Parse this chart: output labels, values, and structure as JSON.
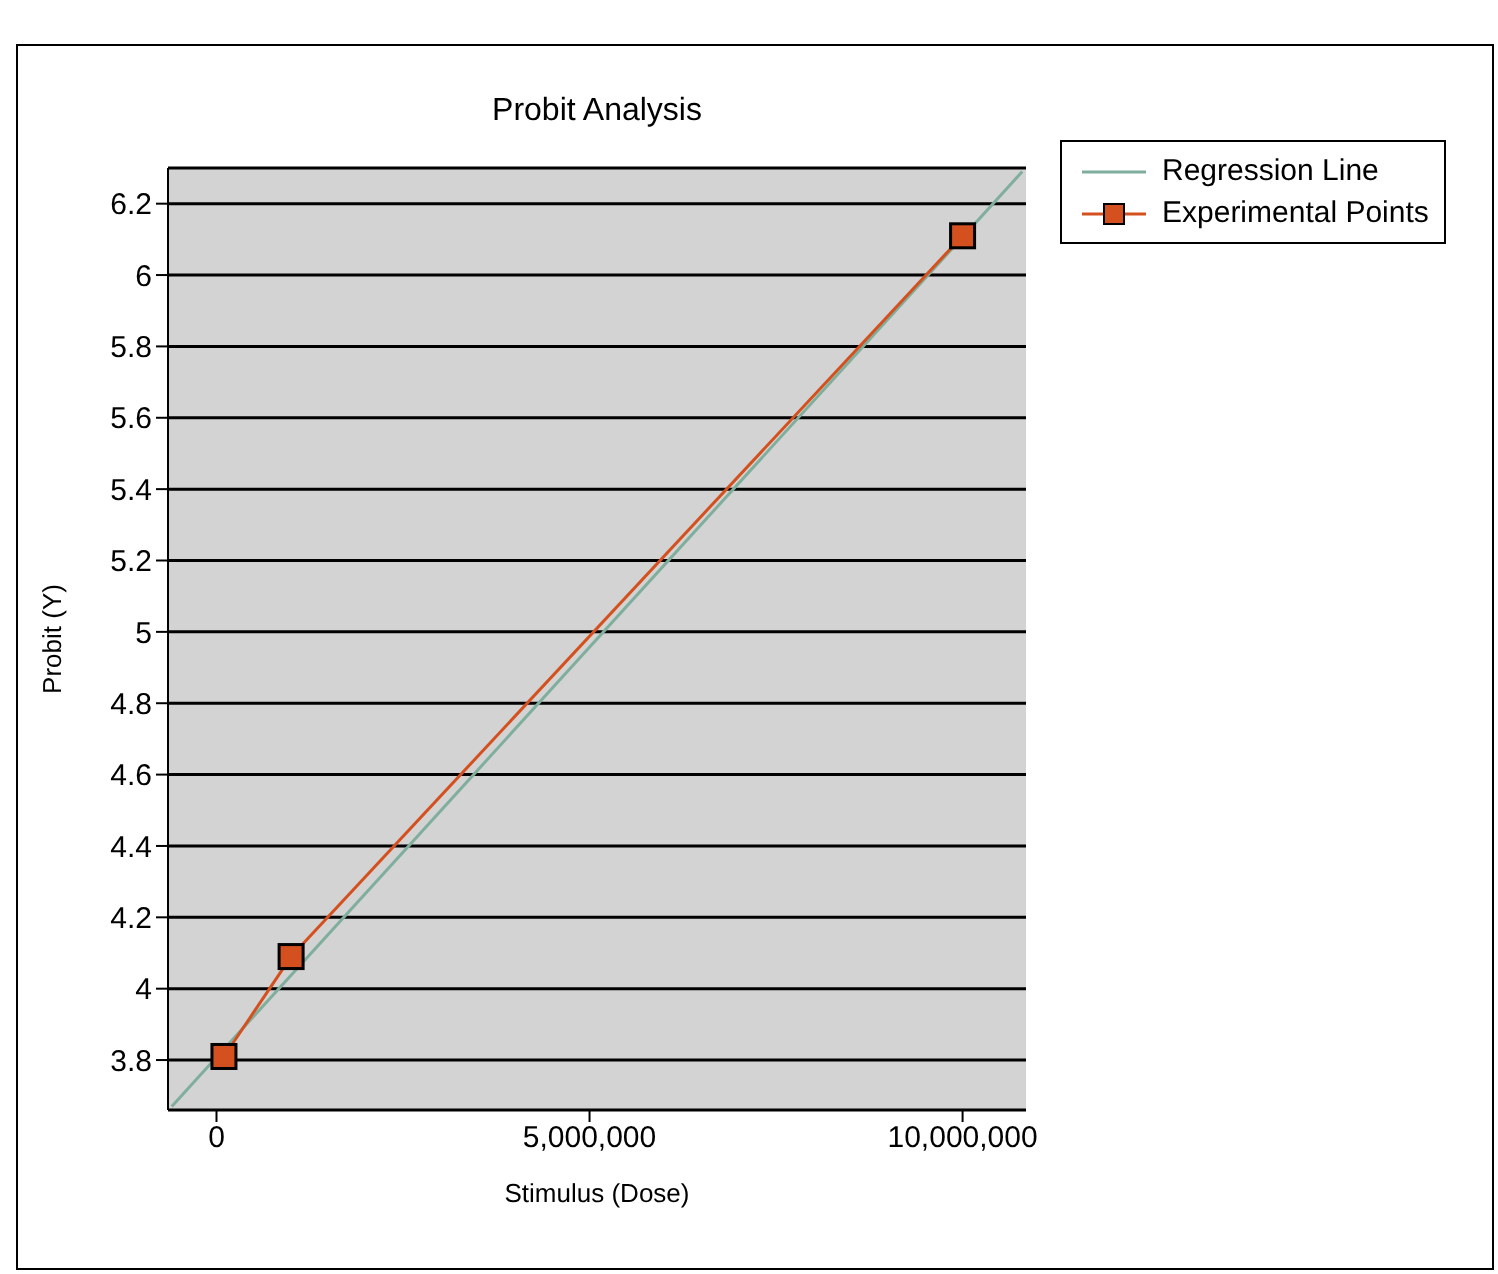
{
  "chart_data": {
    "type": "line",
    "title": "Probit Analysis",
    "xlabel": "Stimulus (Dose)",
    "ylabel": "Probit (Y)",
    "xlim": [
      -650000,
      10850000
    ],
    "xticks": [
      0,
      {
        "value": 5000000,
        "label": "5,000,000"
      },
      {
        "value": 10000000,
        "label": "10,000,000"
      }
    ],
    "ylim": [
      3.66,
      6.3
    ],
    "yticks": [
      3.8,
      4,
      4.2,
      4.4,
      4.6,
      4.8,
      5,
      5.2,
      5.4,
      5.6,
      5.8,
      6,
      6.2
    ],
    "grid": "y",
    "legend": "top right",
    "series": [
      {
        "name": "Regression Line",
        "color": "#7fae9c",
        "marker": "none",
        "x": [
          -600000,
          10800000
        ],
        "values": [
          3.67,
          6.29
        ]
      },
      {
        "name": "Experimental Points",
        "color": "#d4501e",
        "marker": "square",
        "x": [
          100000,
          1000000,
          10000000
        ],
        "values": [
          3.81,
          4.09,
          6.11
        ]
      }
    ]
  }
}
